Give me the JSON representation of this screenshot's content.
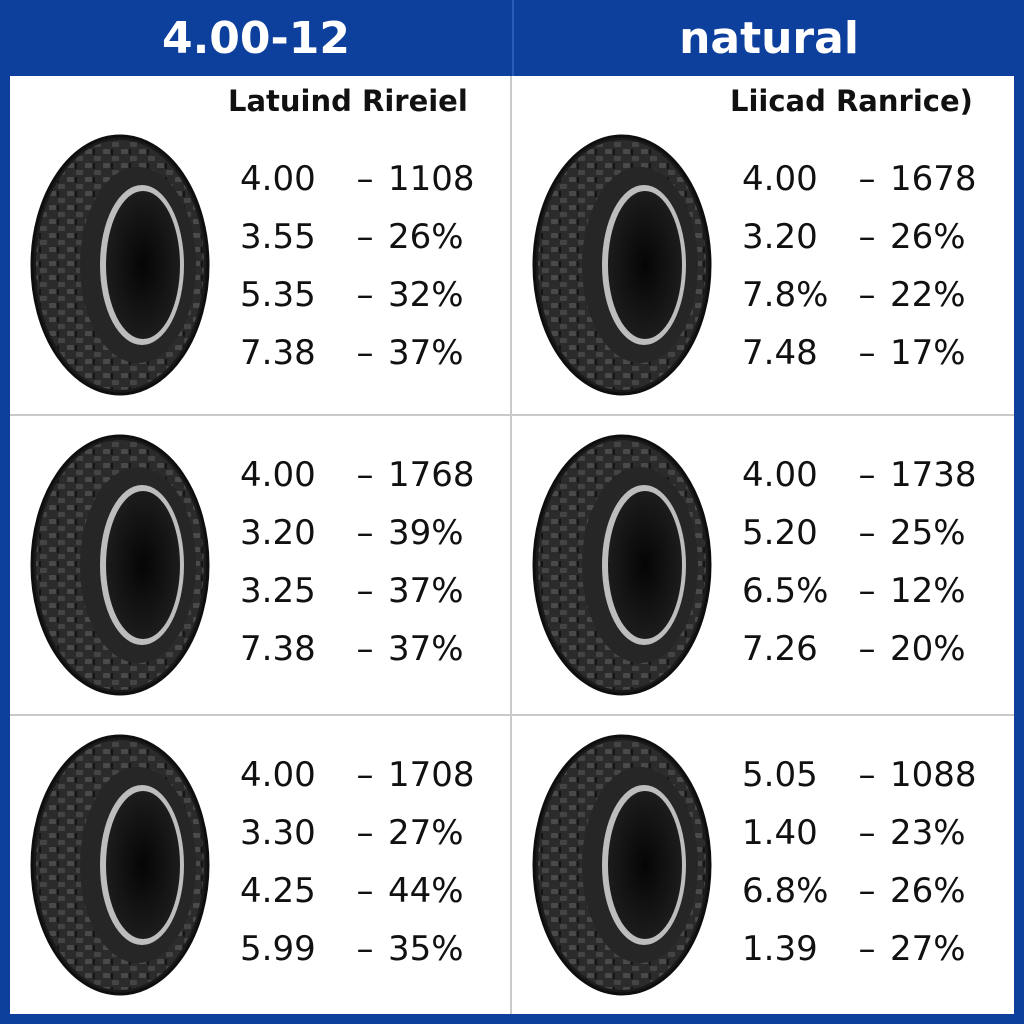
{
  "header": {
    "left_title": "4.00-12",
    "right_title": "natural"
  },
  "columns": [
    {
      "subtitle": "Latuind Rireiel"
    },
    {
      "subtitle": "Liicad Ranrice)"
    }
  ],
  "cells": [
    {
      "rows": [
        {
          "a": "4.00",
          "sep": "–",
          "b": "1108"
        },
        {
          "a": "3.55",
          "sep": "–",
          "b": "26%"
        },
        {
          "a": "5.35",
          "sep": "–",
          "b": "32%"
        },
        {
          "a": "7.38",
          "sep": "–",
          "b": "37%"
        }
      ]
    },
    {
      "rows": [
        {
          "a": "4.00",
          "sep": "–",
          "b": "1678"
        },
        {
          "a": "3.20",
          "sep": "–",
          "b": "26%"
        },
        {
          "a": "7.8%",
          "sep": "–",
          "b": "22%"
        },
        {
          "a": "7.48",
          "sep": "–",
          "b": "17%"
        }
      ]
    },
    {
      "rows": [
        {
          "a": "4.00",
          "sep": "–",
          "b": "1768"
        },
        {
          "a": "3.20",
          "sep": "–",
          "b": "39%"
        },
        {
          "a": "3.25",
          "sep": "–",
          "b": "37%"
        },
        {
          "a": "7.38",
          "sep": "–",
          "b": "37%"
        }
      ]
    },
    {
      "rows": [
        {
          "a": "4.00",
          "sep": "–",
          "b": "1738"
        },
        {
          "a": "5.20",
          "sep": "–",
          "b": "25%"
        },
        {
          "a": "6.5%",
          "sep": "–",
          "b": "12%"
        },
        {
          "a": "7.26",
          "sep": "–",
          "b": "20%"
        }
      ]
    },
    {
      "rows": [
        {
          "a": "4.00",
          "sep": "–",
          "b": "1708"
        },
        {
          "a": "3.30",
          "sep": "–",
          "b": "27%"
        },
        {
          "a": "4.25",
          "sep": "–",
          "b": "44%"
        },
        {
          "a": "5.99",
          "sep": "–",
          "b": "35%"
        }
      ]
    },
    {
      "rows": [
        {
          "a": "5.05",
          "sep": "–",
          "b": "1088"
        },
        {
          "a": "1.40",
          "sep": "–",
          "b": "23%"
        },
        {
          "a": "6.8%",
          "sep": "–",
          "b": "26%"
        },
        {
          "a": "1.39",
          "sep": "–",
          "b": "27%"
        }
      ]
    }
  ],
  "icons": {
    "tire": "tire-icon"
  },
  "colors": {
    "header_bg": "#0d3f9c",
    "header_text": "#ffffff",
    "body_bg": "#ffffff",
    "text": "#111111"
  }
}
